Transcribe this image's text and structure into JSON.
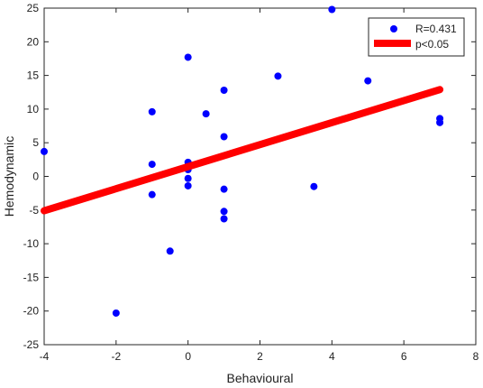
{
  "chart_data": {
    "type": "scatter",
    "xlabel": "Behavioural",
    "ylabel": "Hemodynamic",
    "xlim": [
      -4,
      8
    ],
    "ylim": [
      -25,
      25
    ],
    "xticks": [
      -4,
      -2,
      0,
      2,
      4,
      6,
      8
    ],
    "yticks": [
      -25,
      -20,
      -15,
      -10,
      -5,
      0,
      5,
      10,
      15,
      20,
      25
    ],
    "grid": false,
    "legend_position": "top-right",
    "series": [
      {
        "name": "R=0.431",
        "kind": "scatter",
        "color": "#0000ff",
        "points": [
          {
            "x": -4,
            "y": 3.7
          },
          {
            "x": -2,
            "y": -20.3
          },
          {
            "x": -1,
            "y": 9.6
          },
          {
            "x": -1,
            "y": 1.8
          },
          {
            "x": -1,
            "y": -2.7
          },
          {
            "x": -0.5,
            "y": -11.1
          },
          {
            "x": 0,
            "y": 17.7
          },
          {
            "x": 0,
            "y": 2.1
          },
          {
            "x": 0,
            "y": 1.0
          },
          {
            "x": 0,
            "y": -0.3
          },
          {
            "x": 0,
            "y": -1.4
          },
          {
            "x": 0.5,
            "y": 9.3
          },
          {
            "x": 1,
            "y": 12.8
          },
          {
            "x": 1,
            "y": 5.9
          },
          {
            "x": 1,
            "y": -1.9
          },
          {
            "x": 1,
            "y": -5.2
          },
          {
            "x": 1,
            "y": -6.3
          },
          {
            "x": 2.5,
            "y": 14.9
          },
          {
            "x": 3.5,
            "y": -1.5
          },
          {
            "x": 4,
            "y": 24.8
          },
          {
            "x": 5,
            "y": 14.2
          },
          {
            "x": 7,
            "y": 8.6
          },
          {
            "x": 7,
            "y": 8.0
          }
        ]
      },
      {
        "name": "p<0.05",
        "kind": "line",
        "color": "#ff0000",
        "points": [
          {
            "x": -4,
            "y": -5.1
          },
          {
            "x": 7,
            "y": 12.9
          }
        ]
      }
    ]
  }
}
